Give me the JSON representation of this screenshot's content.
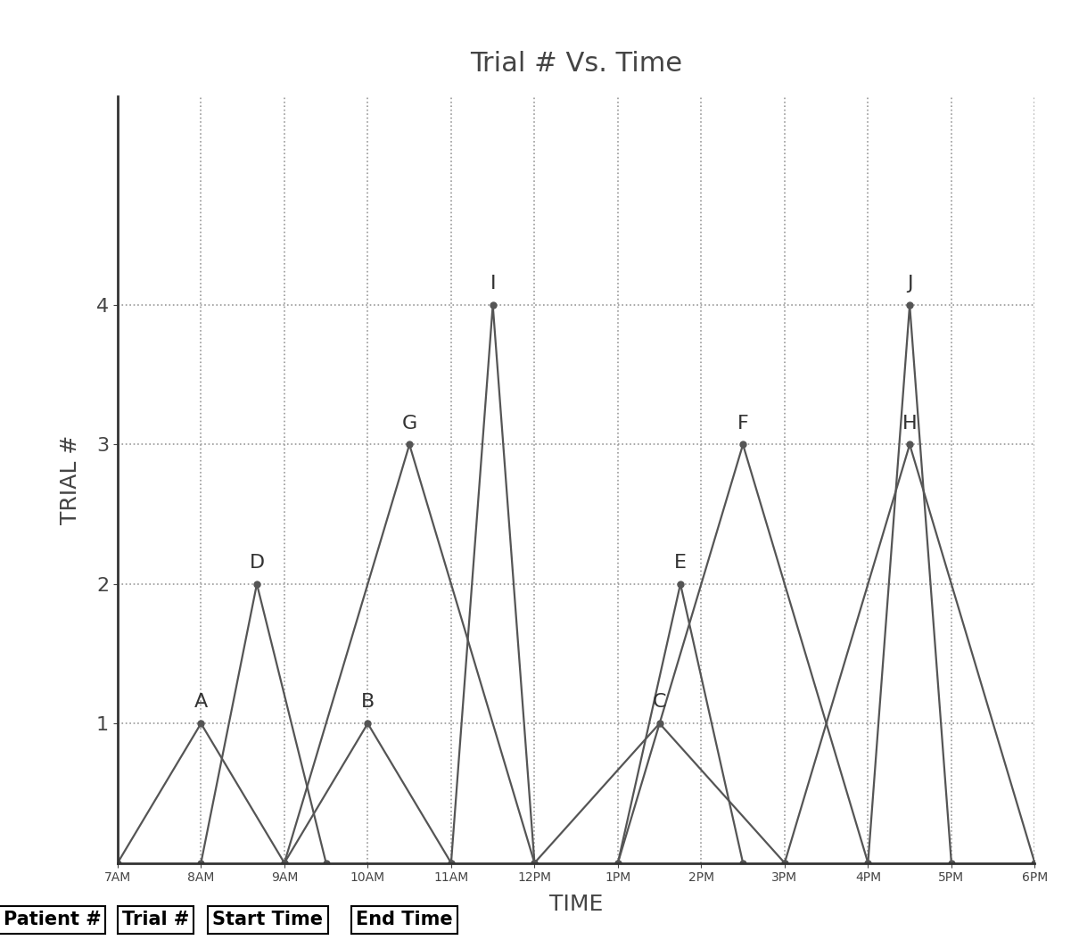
{
  "chart_data": {
    "type": "line",
    "title": "Trial # Vs. Time",
    "x_label": "TIME",
    "y_label": "TRIAL #",
    "color": "#555555",
    "marker": "o",
    "line_style": "solid",
    "grid": true,
    "data_labels": false,
    "series": [
      {
        "name": "A",
        "x": [
          7,
          8,
          9
        ],
        "values": [
          0,
          1,
          0
        ]
      },
      {
        "name": "D",
        "x": [
          8,
          8.67,
          9.5
        ],
        "values": [
          0,
          2,
          0
        ]
      },
      {
        "name": "B",
        "x": [
          9,
          10,
          11
        ],
        "values": [
          0,
          1,
          0
        ]
      },
      {
        "name": "G",
        "x": [
          9,
          10.5,
          12
        ],
        "values": [
          0,
          3,
          0
        ]
      },
      {
        "name": "I",
        "x": [
          11,
          11.5,
          12
        ],
        "values": [
          0,
          4,
          0
        ]
      },
      {
        "name": "C",
        "x": [
          12,
          13.5,
          15
        ],
        "values": [
          0,
          1,
          0
        ]
      },
      {
        "name": "E",
        "x": [
          13,
          13.75,
          14.5
        ],
        "values": [
          0,
          2,
          0
        ]
      },
      {
        "name": "F",
        "x": [
          13,
          14.5,
          16
        ],
        "values": [
          0,
          3,
          0
        ]
      },
      {
        "name": "H",
        "x": [
          15,
          16.5,
          18
        ],
        "values": [
          0,
          3,
          0
        ]
      },
      {
        "name": "J",
        "x": [
          16,
          16.5,
          17
        ],
        "values": [
          0,
          4,
          0
        ]
      }
    ],
    "xlim": [
      7,
      18
    ],
    "xticks": [
      {
        "value": 7,
        "label": "7AM"
      },
      {
        "value": 8,
        "label": "8AM"
      },
      {
        "value": 9,
        "label": "9AM"
      },
      {
        "value": 10,
        "label": "10AM"
      },
      {
        "value": 11,
        "label": "11AM"
      },
      {
        "value": 12,
        "label": "12PM"
      },
      {
        "value": 13,
        "label": "1PM"
      },
      {
        "value": 14,
        "label": "2PM"
      },
      {
        "value": 15,
        "label": "3PM"
      },
      {
        "value": 16,
        "label": "4PM"
      },
      {
        "value": 17,
        "label": "5PM"
      },
      {
        "value": 18,
        "label": "6PM"
      }
    ],
    "ylim": [
      0,
      5.5
    ],
    "yticks": [
      1,
      2,
      3,
      4
    ],
    "table_header": [
      "Patient #",
      "Trial #",
      "Start Time",
      "End Time"
    ]
  }
}
